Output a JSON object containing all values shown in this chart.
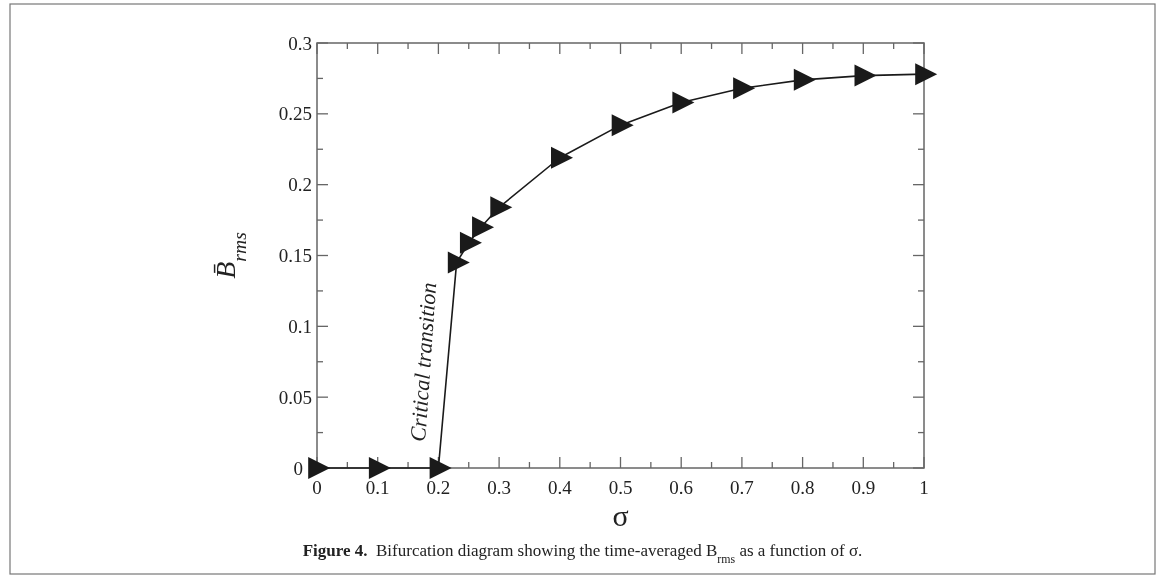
{
  "chart_data": {
    "type": "line",
    "xlabel": "σ",
    "ylabel": "B̄$_{rms}$",
    "x": [
      0,
      0.1,
      0.2,
      0.23,
      0.25,
      0.27,
      0.3,
      0.4,
      0.5,
      0.6,
      0.7,
      0.8,
      0.9,
      1
    ],
    "series": [
      {
        "color": "#1a1a1a",
        "values": [
          0,
          0,
          0,
          0.145,
          0.159,
          0.17,
          0.184,
          0.219,
          0.242,
          0.258,
          0.268,
          0.274,
          0.277,
          0.278
        ]
      }
    ],
    "marker": "triangle",
    "line_style": "solid",
    "grid": false,
    "xlim": [
      0,
      1
    ],
    "ylim": [
      0,
      0.3
    ],
    "xticks": [
      0,
      {
        "value": 0.05,
        "label": null
      },
      0.1,
      {
        "value": 0.15,
        "label": null
      },
      0.2,
      {
        "value": 0.25,
        "label": null
      },
      0.3,
      {
        "value": 0.35,
        "label": null
      },
      0.4,
      {
        "value": 0.45,
        "label": null
      },
      0.5,
      {
        "value": 0.55,
        "label": null
      },
      0.6,
      {
        "value": 0.65,
        "label": null
      },
      0.7,
      {
        "value": 0.75,
        "label": null
      },
      0.8,
      {
        "value": 0.85,
        "label": null
      },
      0.9,
      {
        "value": 0.95,
        "label": null
      },
      1
    ],
    "yticks": [
      0,
      {
        "value": 0.025,
        "label": null
      },
      0.05,
      {
        "value": 0.075,
        "label": null
      },
      0.1,
      {
        "value": 0.125,
        "label": null
      },
      0.15,
      {
        "value": 0.175,
        "label": null
      },
      0.2,
      {
        "value": 0.225,
        "label": null
      },
      0.25,
      {
        "value": 0.275,
        "label": null
      },
      0.3
    ],
    "annotations": [
      "Critical transition",
      "Figure 4.  Bifurcation diagram showing the time-averaged B$_{rms}$ as a function of σ."
    ]
  }
}
